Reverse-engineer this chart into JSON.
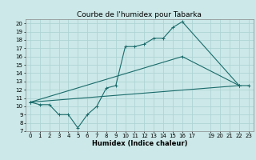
{
  "title": "Courbe de l'humidex pour Tabarka",
  "xlabel": "Humidex (Indice chaleur)",
  "bg_color": "#cce8e8",
  "grid_color": "#afd4d4",
  "line_color": "#1a6b6b",
  "xlim": [
    -0.5,
    23.5
  ],
  "ylim": [
    7,
    20.5
  ],
  "xticks": [
    0,
    1,
    2,
    3,
    4,
    5,
    6,
    7,
    8,
    9,
    10,
    11,
    12,
    13,
    14,
    15,
    16,
    17,
    19,
    20,
    21,
    22,
    23
  ],
  "yticks": [
    7,
    8,
    9,
    10,
    11,
    12,
    13,
    14,
    15,
    16,
    17,
    18,
    19,
    20
  ],
  "line1_x": [
    0,
    1,
    2,
    3,
    4,
    5,
    6,
    7,
    8,
    9,
    10,
    11,
    12,
    13,
    14,
    15,
    16,
    22,
    23
  ],
  "line1_y": [
    10.5,
    10.2,
    10.2,
    9.0,
    9.0,
    7.4,
    9.0,
    10.0,
    12.2,
    12.5,
    17.2,
    17.2,
    17.5,
    18.2,
    18.2,
    19.5,
    20.2,
    12.5,
    12.5
  ],
  "line2_x": [
    0,
    16,
    22
  ],
  "line2_y": [
    10.5,
    16.0,
    12.5
  ],
  "line3_x": [
    0,
    22
  ],
  "line3_y": [
    10.5,
    12.5
  ],
  "title_fontsize": 6.5,
  "tick_fontsize": 5.0,
  "xlabel_fontsize": 6.0
}
